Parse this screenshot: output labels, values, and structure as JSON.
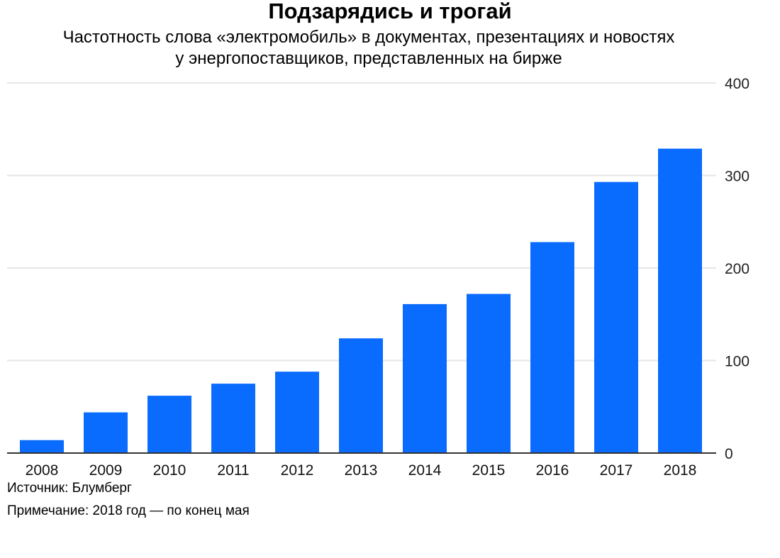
{
  "chart_data": {
    "type": "bar",
    "title": "Подзарядись и трогай",
    "subtitle_lines": [
      "Частотность слова «электромобиль» в документах, презентациях и новостях",
      "у энергопоставщиков, представленных на бирже"
    ],
    "categories": [
      "2008",
      "2009",
      "2010",
      "2011",
      "2012",
      "2013",
      "2014",
      "2015",
      "2016",
      "2017",
      "2018"
    ],
    "values": [
      14,
      44,
      62,
      75,
      88,
      124,
      161,
      172,
      228,
      293,
      329
    ],
    "ylim": [
      0,
      400
    ],
    "yticks": [
      0,
      100,
      200,
      300,
      400
    ],
    "yaxis_side": "right",
    "grid": true,
    "bar_color": "#0a6cff",
    "grid_color": "#e6e6e6",
    "axis_color": "#333333"
  },
  "footer": {
    "source": "Источник: Блумберг",
    "note": "Примечание: 2018 год — по конец мая"
  }
}
